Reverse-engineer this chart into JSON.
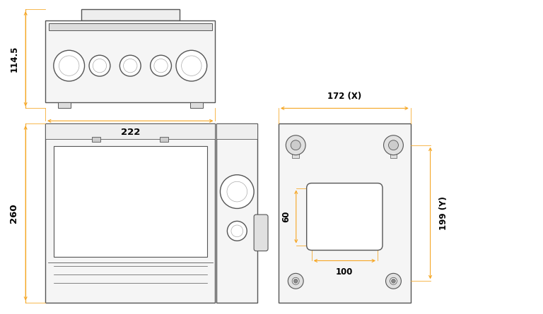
{
  "bg_color": "#ffffff",
  "line_color": "#555555",
  "dim_color": "#f5a623",
  "lw": 1.0,
  "dlw": 0.8,
  "fig_width": 7.68,
  "fig_height": 4.45,
  "dpi": 100,
  "labels": {
    "114_5": "114.5",
    "222": "222",
    "260": "260",
    "172": "172 (X)",
    "199": "199 (Y)",
    "60": "60",
    "100": "100"
  }
}
